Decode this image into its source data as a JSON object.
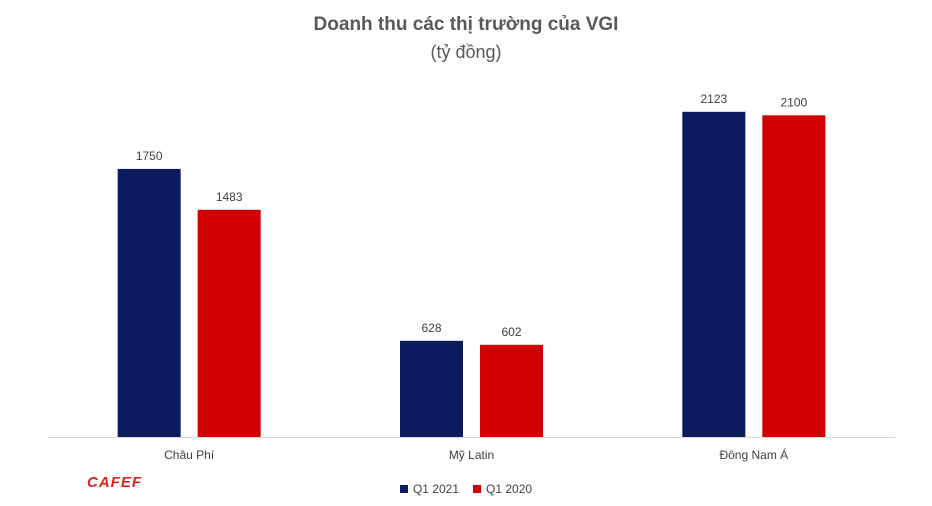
{
  "chart_data": {
    "type": "bar",
    "title": "Doanh thu các thị trường của VGI",
    "subtitle": "(tỷ đồng)",
    "categories": [
      "Châu Phí",
      "Mỹ Latin",
      "Đông Nam Á"
    ],
    "series": [
      {
        "name": "Q1 2021",
        "values": [
          1750,
          628,
          2123
        ],
        "color": "#0d1a5e"
      },
      {
        "name": "Q1 2020",
        "values": [
          1483,
          602,
          2100
        ],
        "color": "#d00000"
      }
    ],
    "ylim": [
      0,
      2200
    ],
    "grid": false,
    "legend_position": "bottom"
  },
  "watermark": {
    "text": "CAFEF",
    "color": "#d8241f"
  }
}
